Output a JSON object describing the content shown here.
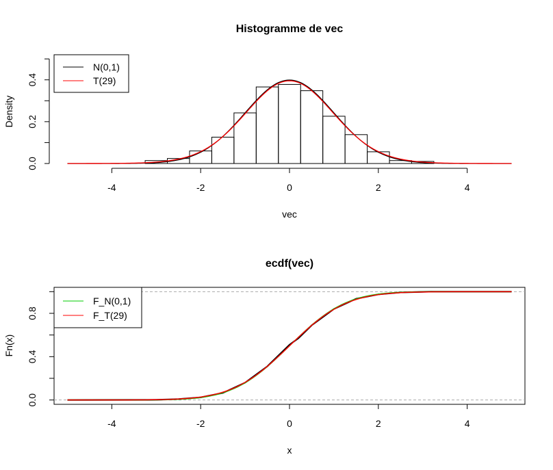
{
  "chart_data": [
    {
      "type": "bar",
      "title": "Histogramme de vec",
      "xlabel": "vec",
      "ylabel": "Density",
      "xlim": [
        -5.3,
        5.3
      ],
      "ylim": [
        0,
        0.52
      ],
      "x_ticks": [
        -4,
        -2,
        0,
        2,
        4
      ],
      "x_tick_labels": [
        "-4",
        "-2",
        "0",
        "2",
        "4"
      ],
      "y_ticks": [
        0.0,
        0.2,
        0.4
      ],
      "y_tick_labels": [
        "0.0",
        "0.2",
        "0.4"
      ],
      "grid": false,
      "bins": [
        {
          "x0": -3.25,
          "x1": -2.75,
          "value": 0.014
        },
        {
          "x0": -2.75,
          "x1": -2.25,
          "value": 0.024
        },
        {
          "x0": -2.25,
          "x1": -1.75,
          "value": 0.06
        },
        {
          "x0": -1.75,
          "x1": -1.25,
          "value": 0.126
        },
        {
          "x0": -1.25,
          "x1": -0.75,
          "value": 0.242
        },
        {
          "x0": -0.75,
          "x1": -0.25,
          "value": 0.366
        },
        {
          "x0": -0.25,
          "x1": 0.25,
          "value": 0.378
        },
        {
          "x0": 0.25,
          "x1": 0.75,
          "value": 0.348
        },
        {
          "x0": 0.75,
          "x1": 1.25,
          "value": 0.226
        },
        {
          "x0": 1.25,
          "x1": 1.75,
          "value": 0.138
        },
        {
          "x0": 1.75,
          "x1": 2.25,
          "value": 0.056
        },
        {
          "x0": 2.25,
          "x1": 2.75,
          "value": 0.014
        },
        {
          "x0": 2.75,
          "x1": 3.25,
          "value": 0.01
        }
      ],
      "curves": [
        {
          "name": "N(0,1)",
          "distribution": "normal",
          "x_range": [
            -5,
            5
          ],
          "color": "#000000"
        },
        {
          "name": "T(29)",
          "distribution": "t",
          "df": 29,
          "x_range": [
            -5,
            5
          ],
          "color": "#ff0000"
        }
      ],
      "legend": {
        "placement": "top-left",
        "entries": [
          "N(0,1)",
          "T(29)"
        ],
        "colors": [
          "#000000",
          "#ff0000"
        ]
      }
    },
    {
      "type": "line",
      "title": "ecdf(vec)",
      "xlabel": "x",
      "ylabel": "Fn(x)",
      "xlim": [
        -5.3,
        5.3
      ],
      "ylim": [
        -0.04,
        1.04
      ],
      "x_ticks": [
        -4,
        -2,
        0,
        2,
        4
      ],
      "x_tick_labels": [
        "-4",
        "-2",
        "0",
        "2",
        "4"
      ],
      "y_ticks": [
        0.0,
        0.4,
        0.8
      ],
      "y_tick_labels": [
        "0.0",
        "0.4",
        "0.8"
      ],
      "reference_lines": [
        0,
        1
      ],
      "grid": false,
      "series": [
        {
          "name": "ecdf",
          "color": "#000000",
          "x": [
            -5.0,
            -3.2,
            -3.0,
            -2.5,
            -2.0,
            -1.5,
            -1.0,
            -0.5,
            -0.3,
            0.0,
            0.2,
            0.5,
            1.0,
            1.5,
            2.0,
            2.5,
            3.0,
            3.2,
            5.0
          ],
          "y": [
            0,
            0.001,
            0.002,
            0.008,
            0.024,
            0.065,
            0.16,
            0.31,
            0.39,
            0.51,
            0.57,
            0.69,
            0.84,
            0.935,
            0.975,
            0.993,
            0.998,
            1.0,
            1.0
          ]
        },
        {
          "name": "F_N(0,1)",
          "distribution": "normal",
          "x_range": [
            -5,
            5
          ],
          "color": "#00cc00"
        },
        {
          "name": "F_T(29)",
          "distribution": "t",
          "df": 29,
          "x_range": [
            -5,
            5
          ],
          "color": "#ff0000"
        }
      ],
      "legend": {
        "placement": "top-left",
        "entries": [
          "F_N(0,1)",
          "F_T(29)"
        ],
        "colors": [
          "#00cc00",
          "#ff0000"
        ]
      }
    }
  ]
}
